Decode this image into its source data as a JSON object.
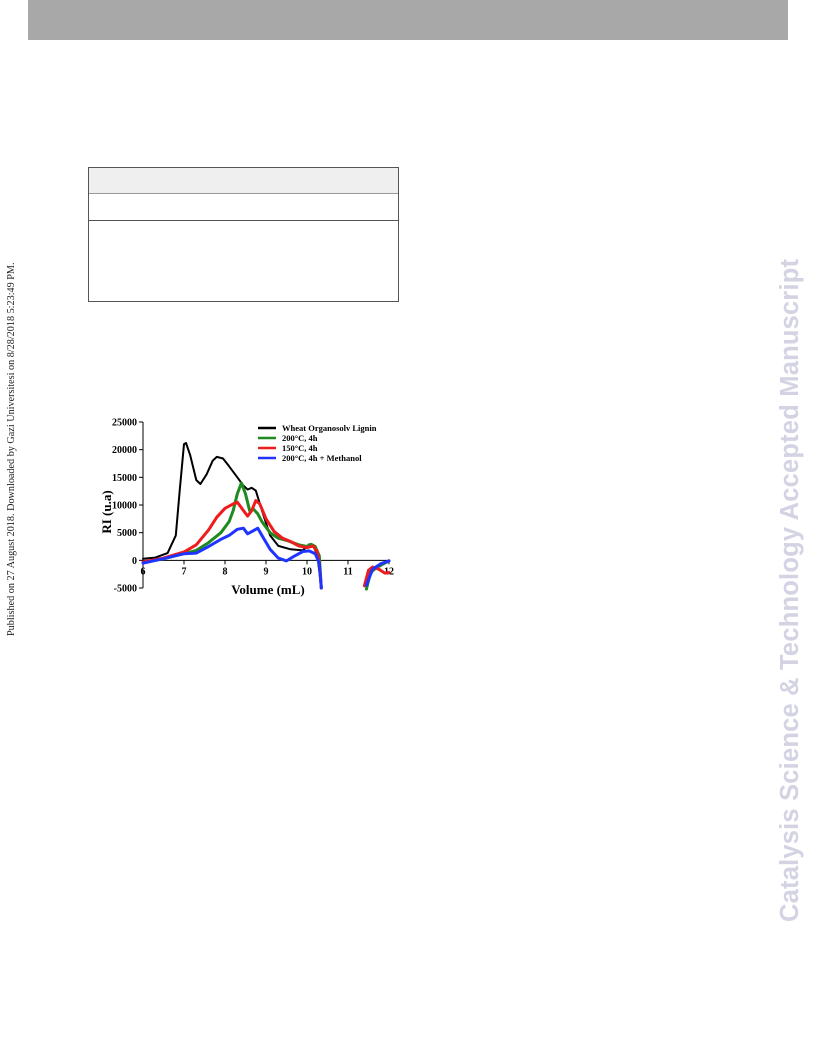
{
  "margin_note": "Published on 27 August 2018. Downloaded by Gazi Universitesi on 8/28/2018 5:23:49 PM.",
  "watermark": "Catalysis Science & Technology Accepted Manuscript",
  "colors": {
    "band": "#a8a8a8",
    "watermark": "#d3d3e3"
  },
  "chart_data": {
    "type": "line",
    "title": "",
    "xlabel": "Volume (mL)",
    "ylabel": "RI  (u.a)",
    "xlim": [
      6,
      12
    ],
    "ylim": [
      -5000,
      25000
    ],
    "xticks": [
      "6",
      "7",
      "8",
      "9",
      "10",
      "11",
      "12"
    ],
    "yticks": [
      "-5000",
      "0",
      "5000",
      "10000",
      "15000",
      "20000",
      "25000"
    ],
    "grid": false,
    "legend_position": "top-right",
    "series": [
      {
        "name": "Wheat Organosolv Lignin",
        "color": "#000000",
        "segments": [
          [
            [
              6.0,
              300
            ],
            [
              6.3,
              500
            ],
            [
              6.6,
              1300
            ],
            [
              6.8,
              4500
            ],
            [
              6.9,
              13000
            ],
            [
              7.0,
              21000
            ],
            [
              7.05,
              21200
            ],
            [
              7.15,
              19000
            ],
            [
              7.3,
              14500
            ],
            [
              7.4,
              13800
            ],
            [
              7.55,
              15500
            ],
            [
              7.7,
              18000
            ],
            [
              7.8,
              18700
            ],
            [
              7.95,
              18400
            ],
            [
              8.1,
              17000
            ],
            [
              8.3,
              15000
            ],
            [
              8.45,
              13500
            ],
            [
              8.55,
              12800
            ],
            [
              8.65,
              13100
            ],
            [
              8.75,
              12600
            ],
            [
              8.9,
              9000
            ],
            [
              9.1,
              4500
            ],
            [
              9.3,
              2600
            ],
            [
              9.6,
              2000
            ],
            [
              9.9,
              1800
            ],
            [
              10.05,
              2900
            ],
            [
              10.15,
              2600
            ],
            [
              10.25,
              1000
            ],
            [
              10.35,
              -5000
            ]
          ],
          [
            [
              11.45,
              -5000
            ],
            [
              11.55,
              -2000
            ],
            [
              11.7,
              -1000
            ],
            [
              11.9,
              -300
            ],
            [
              12.0,
              0
            ]
          ]
        ]
      },
      {
        "name": "200°C, 4h",
        "color": "#1f8a1f",
        "segments": [
          [
            [
              6.0,
              -400
            ],
            [
              6.5,
              300
            ],
            [
              7.0,
              1200
            ],
            [
              7.3,
              1800
            ],
            [
              7.6,
              3200
            ],
            [
              7.9,
              5000
            ],
            [
              8.1,
              7000
            ],
            [
              8.2,
              9000
            ],
            [
              8.3,
              12000
            ],
            [
              8.4,
              14000
            ],
            [
              8.5,
              12000
            ],
            [
              8.6,
              9000
            ],
            [
              8.7,
              9200
            ],
            [
              8.8,
              8400
            ],
            [
              8.9,
              7000
            ],
            [
              9.1,
              5000
            ],
            [
              9.3,
              4000
            ],
            [
              9.5,
              3600
            ],
            [
              9.8,
              2800
            ],
            [
              10.0,
              2500
            ],
            [
              10.1,
              2900
            ],
            [
              10.2,
              2500
            ],
            [
              10.3,
              800
            ],
            [
              10.35,
              -5000
            ]
          ],
          [
            [
              11.45,
              -5200
            ],
            [
              11.55,
              -2200
            ],
            [
              11.7,
              -1300
            ],
            [
              11.9,
              -500
            ],
            [
              12.0,
              -100
            ]
          ]
        ]
      },
      {
        "name": "150°C, 4h",
        "color": "#ee1c1c",
        "segments": [
          [
            [
              6.0,
              -300
            ],
            [
              6.5,
              400
            ],
            [
              7.0,
              1500
            ],
            [
              7.3,
              2800
            ],
            [
              7.6,
              5500
            ],
            [
              7.8,
              7800
            ],
            [
              8.0,
              9400
            ],
            [
              8.2,
              10200
            ],
            [
              8.3,
              10500
            ],
            [
              8.45,
              9000
            ],
            [
              8.55,
              8000
            ],
            [
              8.65,
              9000
            ],
            [
              8.75,
              10800
            ],
            [
              8.85,
              10200
            ],
            [
              9.0,
              7500
            ],
            [
              9.2,
              5200
            ],
            [
              9.4,
              4000
            ],
            [
              9.6,
              3400
            ],
            [
              9.8,
              2600
            ],
            [
              10.0,
              2300
            ],
            [
              10.15,
              2600
            ],
            [
              10.25,
              1500
            ],
            [
              10.3,
              -500
            ],
            [
              10.35,
              -5000
            ]
          ],
          [
            [
              11.4,
              -4600
            ],
            [
              11.5,
              -1800
            ],
            [
              11.6,
              -1200
            ],
            [
              11.75,
              -1600
            ],
            [
              11.9,
              -2300
            ],
            [
              12.0,
              -2200
            ]
          ]
        ]
      },
      {
        "name": "200°C, 4h  + Methanol",
        "color": "#1f35ff",
        "segments": [
          [
            [
              6.0,
              -500
            ],
            [
              6.5,
              300
            ],
            [
              7.0,
              1200
            ],
            [
              7.3,
              1300
            ],
            [
              7.6,
              2500
            ],
            [
              7.9,
              3800
            ],
            [
              8.1,
              4500
            ],
            [
              8.3,
              5600
            ],
            [
              8.45,
              5800
            ],
            [
              8.55,
              4800
            ],
            [
              8.7,
              5400
            ],
            [
              8.8,
              5800
            ],
            [
              8.9,
              4500
            ],
            [
              9.1,
              2000
            ],
            [
              9.3,
              400
            ],
            [
              9.5,
              -100
            ],
            [
              9.7,
              800
            ],
            [
              9.9,
              1600
            ],
            [
              10.05,
              1700
            ],
            [
              10.2,
              1200
            ],
            [
              10.3,
              -500
            ],
            [
              10.35,
              -5000
            ]
          ],
          [
            [
              11.45,
              -4500
            ],
            [
              11.6,
              -1600
            ],
            [
              11.8,
              -600
            ],
            [
              12.0,
              -100
            ]
          ]
        ]
      }
    ]
  }
}
